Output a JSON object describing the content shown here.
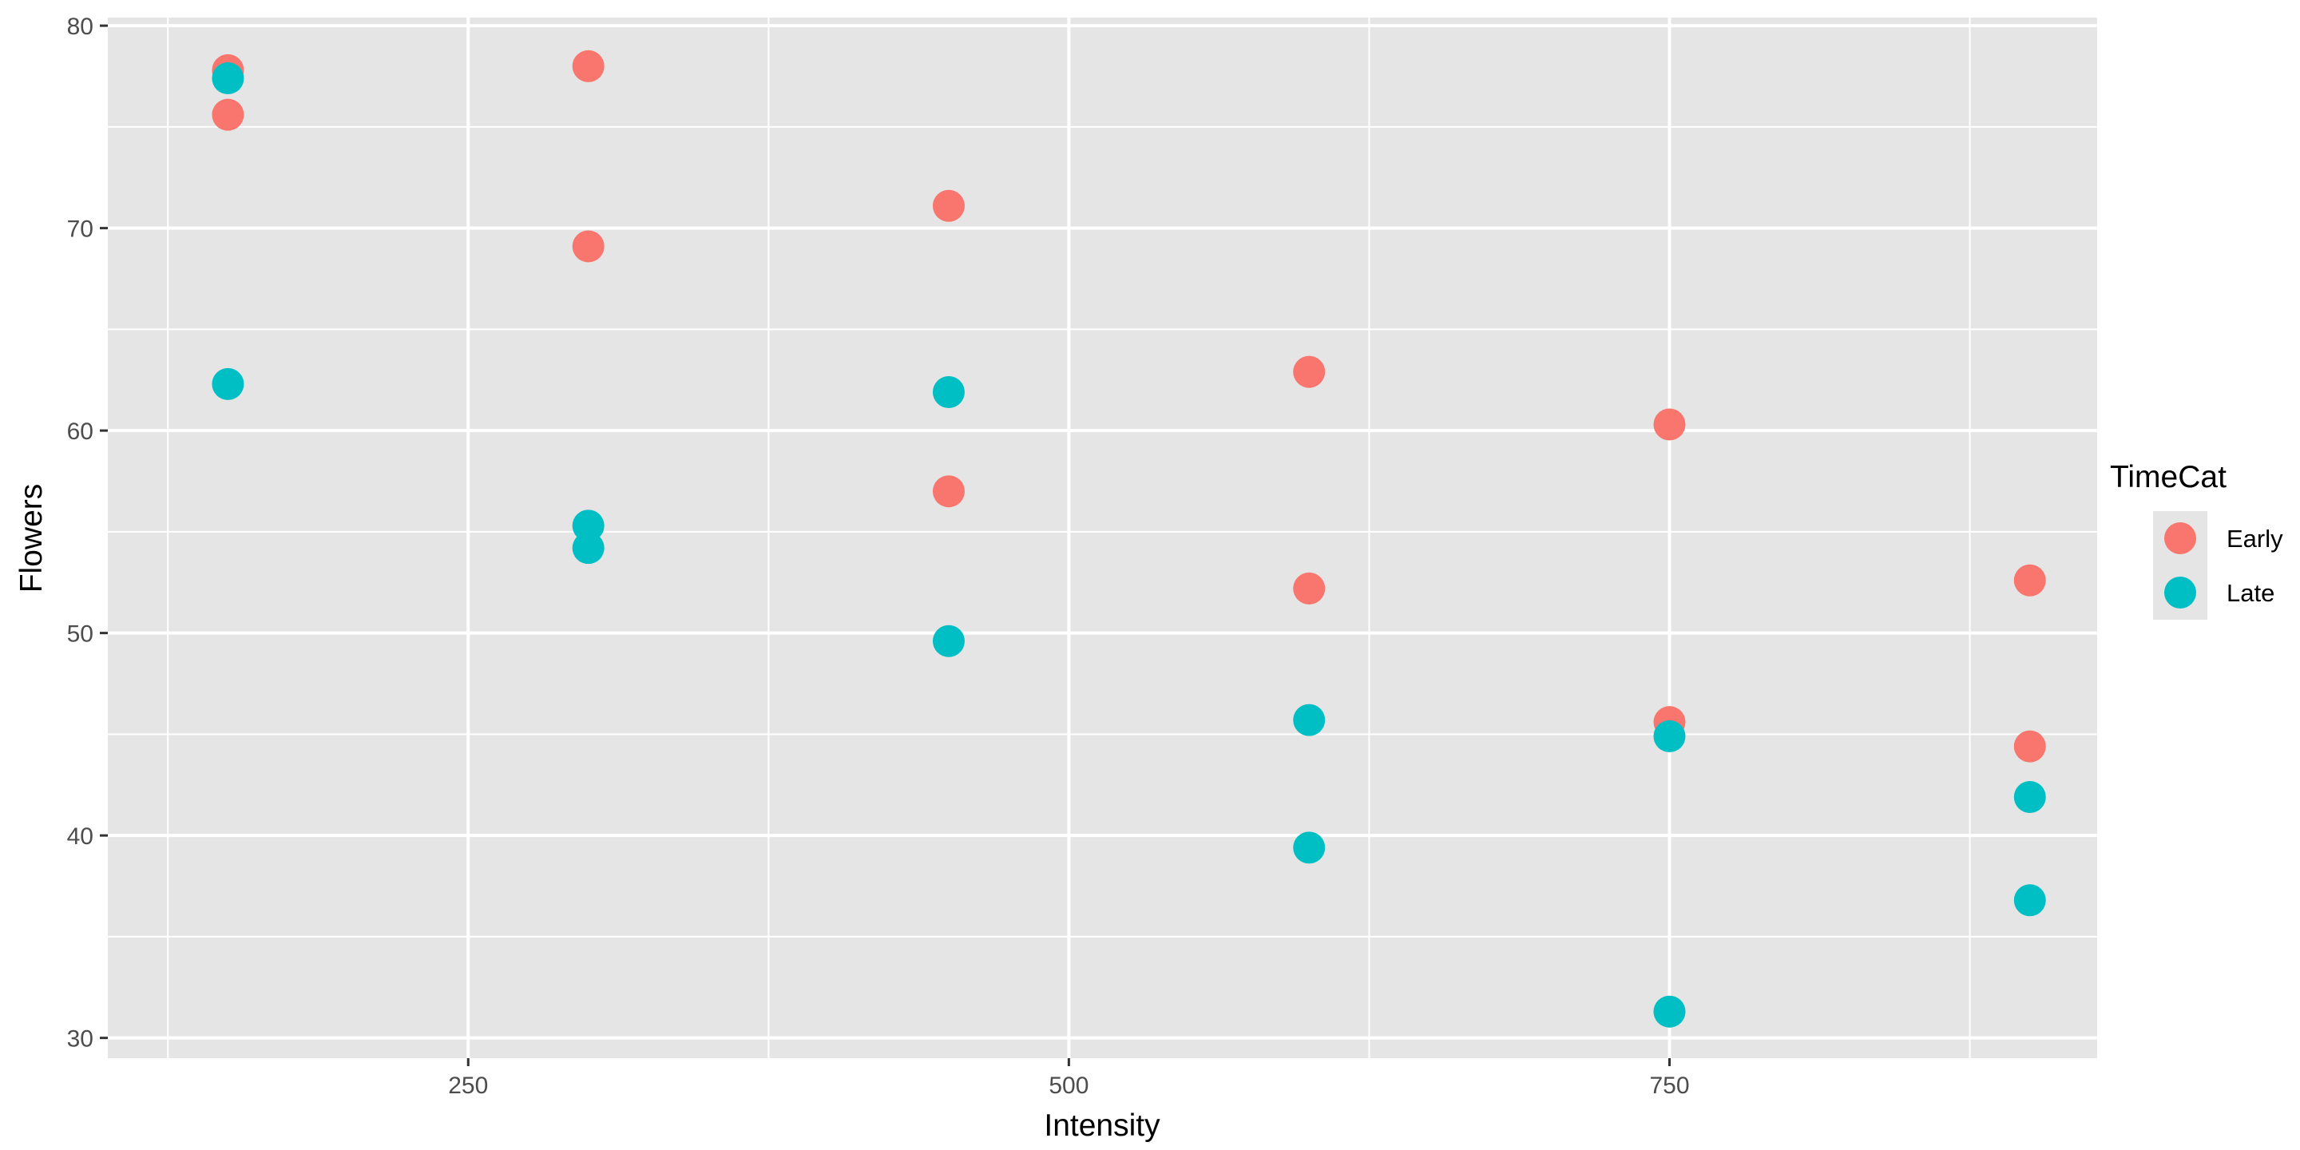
{
  "chart_data": {
    "type": "scatter",
    "xlabel": "Intensity",
    "ylabel": "Flowers",
    "xlim": [
      100,
      928
    ],
    "ylim": [
      29,
      80.4
    ],
    "x_major_ticks": [
      250,
      500,
      750
    ],
    "x_minor_ticks": [
      125,
      375,
      625,
      875
    ],
    "y_major_ticks": [
      30,
      40,
      50,
      60,
      70,
      80
    ],
    "y_minor_ticks": [
      35,
      45,
      55,
      65,
      75
    ],
    "grid": true,
    "legend": {
      "title": "TimeCat",
      "placement": "right",
      "entries": [
        "Early",
        "Late"
      ]
    },
    "panel_background": "#e5e5e5",
    "grid_color": "#ffffff",
    "series": [
      {
        "name": "Early",
        "color": "#f8766d",
        "points": [
          {
            "x": 150,
            "y": 77.8
          },
          {
            "x": 150,
            "y": 75.6
          },
          {
            "x": 300,
            "y": 78.0
          },
          {
            "x": 300,
            "y": 69.1
          },
          {
            "x": 450,
            "y": 71.1
          },
          {
            "x": 450,
            "y": 57.0
          },
          {
            "x": 600,
            "y": 62.9
          },
          {
            "x": 600,
            "y": 52.2
          },
          {
            "x": 750,
            "y": 60.3
          },
          {
            "x": 750,
            "y": 45.6
          },
          {
            "x": 900,
            "y": 52.6
          },
          {
            "x": 900,
            "y": 44.4
          }
        ]
      },
      {
        "name": "Late",
        "color": "#00bfc4",
        "points": [
          {
            "x": 150,
            "y": 77.4
          },
          {
            "x": 150,
            "y": 62.3
          },
          {
            "x": 300,
            "y": 55.3
          },
          {
            "x": 300,
            "y": 54.2
          },
          {
            "x": 450,
            "y": 61.9
          },
          {
            "x": 450,
            "y": 49.6
          },
          {
            "x": 600,
            "y": 45.7
          },
          {
            "x": 600,
            "y": 39.4
          },
          {
            "x": 750,
            "y": 44.9
          },
          {
            "x": 750,
            "y": 31.3
          },
          {
            "x": 900,
            "y": 41.9
          },
          {
            "x": 900,
            "y": 36.8
          }
        ]
      }
    ]
  }
}
